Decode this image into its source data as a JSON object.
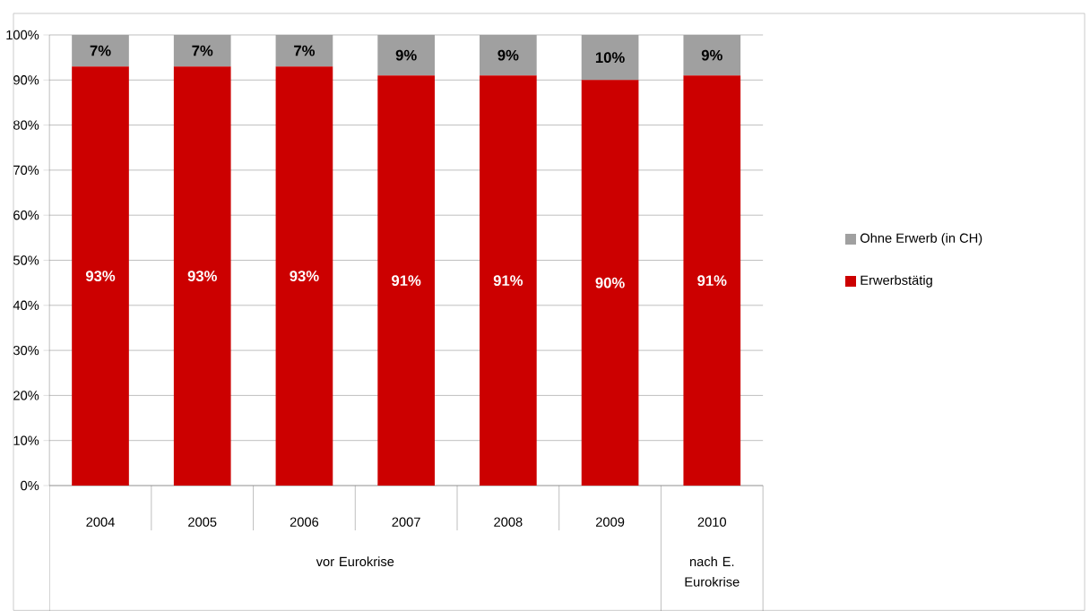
{
  "chart_data": {
    "type": "bar",
    "stacked": true,
    "categories": [
      "2004",
      "2005",
      "2006",
      "2007",
      "2008",
      "2009",
      "2010"
    ],
    "series": [
      {
        "name": "Erwerbstätig",
        "color": "#cc0000",
        "values": [
          93,
          93,
          93,
          91,
          91,
          90,
          91
        ],
        "value_labels": [
          "93%",
          "93%",
          "93%",
          "91%",
          "91%",
          "90%",
          "91%"
        ]
      },
      {
        "name": "Ohne Erwerb (in CH)",
        "color": "#a0a0a0",
        "values": [
          7,
          7,
          7,
          9,
          9,
          10,
          9
        ],
        "value_labels": [
          "7%",
          "7%",
          "7%",
          "9%",
          "9%",
          "10%",
          "9%"
        ]
      }
    ],
    "ylim": [
      0,
      100
    ],
    "yticks": [
      {
        "value": 0,
        "label": "0%"
      },
      {
        "value": 10,
        "label": "10%"
      },
      {
        "value": 20,
        "label": "20%"
      },
      {
        "value": 30,
        "label": "30%"
      },
      {
        "value": 40,
        "label": "40%"
      },
      {
        "value": 50,
        "label": "50%"
      },
      {
        "value": 60,
        "label": "60%"
      },
      {
        "value": 70,
        "label": "70%"
      },
      {
        "value": 80,
        "label": "80%"
      },
      {
        "value": 90,
        "label": "90%"
      },
      {
        "value": 100,
        "label": "100%"
      }
    ],
    "grid": "y",
    "legend": "right",
    "annotations": [
      "vor Eurokrise",
      "nach E. Eurokrise"
    ]
  }
}
